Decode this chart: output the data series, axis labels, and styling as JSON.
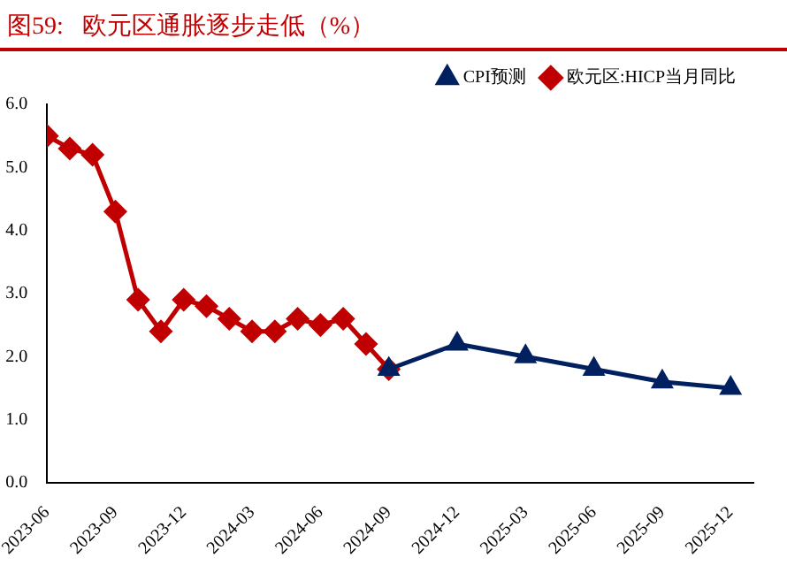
{
  "chart_data": {
    "type": "line",
    "title": "图59:   欧元区通胀逐步走低（%）",
    "xlim": [
      "2023-06",
      "2026-01"
    ],
    "xticks": [
      "2023-06",
      "2023-09",
      "2023-12",
      "2024-03",
      "2024-06",
      "2024-09",
      "2024-12",
      "2025-03",
      "2025-06",
      "2025-09",
      "2025-12"
    ],
    "ylim": [
      0,
      6
    ],
    "yticks": [
      {
        "value": 0,
        "label": "0.0"
      },
      {
        "value": 1,
        "label": "1.0"
      },
      {
        "value": 2,
        "label": "2.0"
      },
      {
        "value": 3,
        "label": "3.0"
      },
      {
        "value": 4,
        "label": "4.0"
      },
      {
        "value": 5,
        "label": "5.0"
      },
      {
        "value": 6,
        "label": "6.0"
      }
    ],
    "grid": false,
    "legend": "top right",
    "line_style": "solid",
    "series": [
      {
        "name": "欧元区:HICP当月同比",
        "color": "#c00000",
        "marker": "diamond",
        "x": [
          "2023-06",
          "2023-07",
          "2023-08",
          "2023-09",
          "2023-10",
          "2023-11",
          "2023-12",
          "2024-01",
          "2024-02",
          "2024-03",
          "2024-04",
          "2024-05",
          "2024-06",
          "2024-07",
          "2024-08",
          "2024-09"
        ],
        "values": [
          5.5,
          5.3,
          5.2,
          4.3,
          2.9,
          2.4,
          2.9,
          2.8,
          2.6,
          2.4,
          2.4,
          2.6,
          2.5,
          2.6,
          2.2,
          1.8
        ]
      },
      {
        "name": "CPI预测",
        "color": "#002060",
        "marker": "triangle",
        "x": [
          "2024-09",
          "2024-12",
          "2025-03",
          "2025-06",
          "2025-09",
          "2025-12"
        ],
        "values": [
          1.8,
          2.2,
          2.0,
          1.8,
          1.6,
          1.5
        ]
      }
    ]
  }
}
